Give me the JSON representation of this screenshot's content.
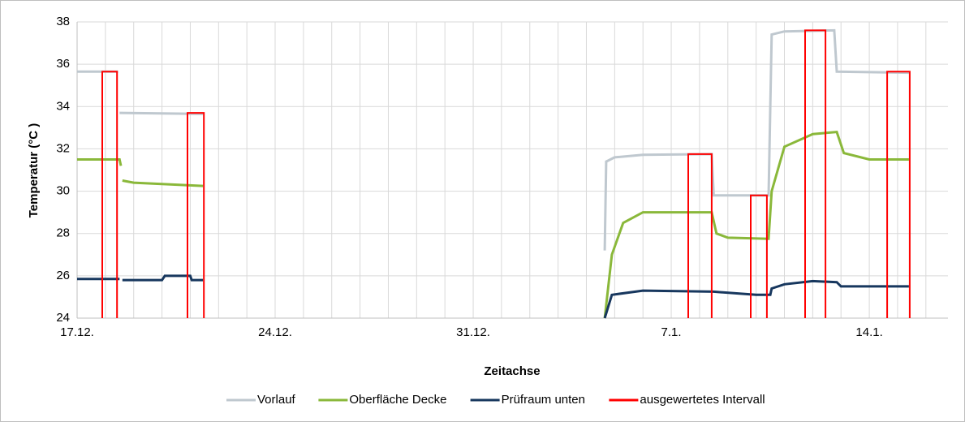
{
  "chart_data": {
    "type": "line",
    "x_label": "Zeitachse",
    "y_label": "Temperatur (°C )",
    "xlim": [
      0,
      30.78
    ],
    "xticks": [
      {
        "value": 0,
        "label": "17.12."
      },
      {
        "value": 7,
        "label": "24.12."
      },
      {
        "value": 14,
        "label": "31.12."
      },
      {
        "value": 21,
        "label": "7.1."
      },
      {
        "value": 28,
        "label": "14.1."
      }
    ],
    "xminorticks": [
      1,
      2,
      3,
      4,
      5,
      6,
      8,
      9,
      10,
      11,
      12,
      13,
      15,
      16,
      17,
      18,
      19,
      20,
      22,
      23,
      24,
      25,
      26,
      27,
      29,
      30
    ],
    "ylim": [
      24,
      38
    ],
    "yticks": [
      24,
      26,
      28,
      30,
      32,
      34,
      36,
      38
    ],
    "grid": true,
    "legend": "bottom",
    "series": [
      {
        "name": "Vorlauf",
        "color": "#bfc8cf",
        "x": [
          0,
          1.45,
          null,
          1.5,
          4.45,
          null,
          18.65,
          18.7,
          19,
          20,
          22.43,
          22.5,
          24.44,
          24.55,
          25,
          26.76,
          26.85,
          29.4
        ],
        "values": [
          35.65,
          35.65,
          null,
          33.7,
          33.65,
          null,
          27.2,
          31.4,
          31.6,
          31.72,
          31.75,
          29.8,
          29.8,
          37.4,
          37.55,
          37.6,
          35.65,
          35.6
        ]
      },
      {
        "name": "Oberfläche Decke",
        "color": "#8ab83a",
        "x": [
          0,
          1.5,
          1.55,
          null,
          1.6,
          2,
          4.45,
          null,
          18.65,
          18.9,
          19.3,
          20,
          22.43,
          22.6,
          23,
          24.44,
          24.55,
          25,
          26,
          26.85,
          27.1,
          28,
          29.4
        ],
        "values": [
          31.5,
          31.5,
          31.2,
          null,
          30.5,
          30.4,
          30.25,
          null,
          24,
          27,
          28.5,
          29,
          29,
          28,
          27.8,
          27.75,
          30,
          32.1,
          32.7,
          32.8,
          31.8,
          31.5,
          31.5
        ]
      },
      {
        "name": "Prüfraum unten",
        "color": "#17375e",
        "x": [
          0,
          1.5,
          null,
          1.6,
          3,
          3.1,
          4,
          4.05,
          4.45,
          null,
          18.65,
          18.9,
          20,
          22.5,
          24,
          24.5,
          24.55,
          25,
          26,
          26.85,
          27,
          29.4
        ],
        "values": [
          25.85,
          25.85,
          null,
          25.8,
          25.8,
          26,
          26,
          25.8,
          25.8,
          null,
          24,
          25.1,
          25.3,
          25.25,
          25.1,
          25.1,
          25.4,
          25.6,
          25.75,
          25.7,
          25.5,
          25.5
        ]
      },
      {
        "name": "ausgewertetes Intervall",
        "color": "#ff0000",
        "x": [
          0.89,
          0.89,
          1.41,
          1.41,
          null,
          3.9,
          3.9,
          4.48,
          4.48,
          null,
          21.6,
          21.6,
          22.43,
          22.43,
          null,
          23.81,
          23.81,
          24.38,
          24.38,
          null,
          25.73,
          25.73,
          26.45,
          26.45,
          null,
          28.63,
          28.63,
          29.43,
          29.43
        ],
        "values": [
          24,
          35.65,
          35.65,
          24,
          null,
          24,
          33.7,
          33.7,
          24,
          null,
          24,
          31.75,
          31.75,
          24,
          null,
          24,
          29.8,
          29.8,
          24,
          null,
          24,
          37.6,
          37.6,
          24,
          null,
          24,
          35.65,
          35.65,
          24
        ]
      }
    ]
  }
}
